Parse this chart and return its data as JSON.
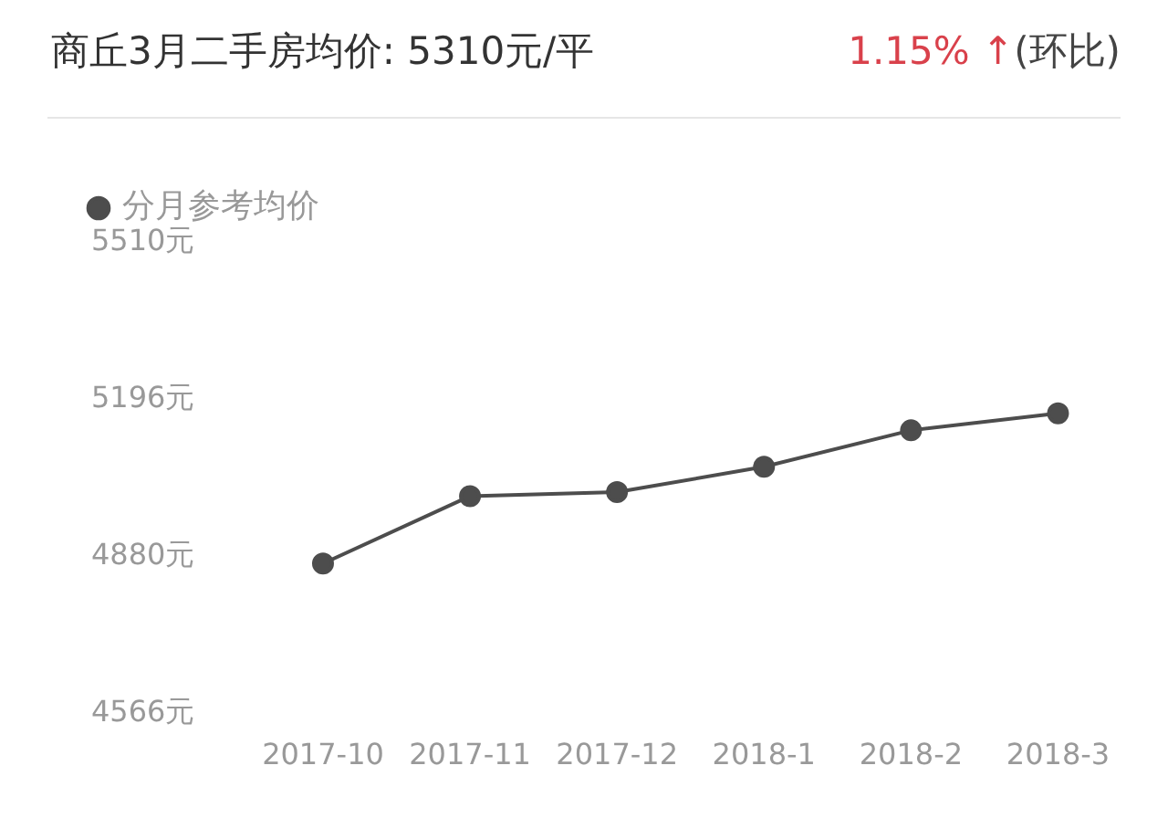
{
  "chart_data": {
    "type": "line",
    "title": "商丘3月二手房均价: 5310元/平",
    "annotations": [
      "1.15% ↑",
      "(环比)"
    ],
    "categories": [
      "2017-10",
      "2017-11",
      "2017-12",
      "2018-1",
      "2018-2",
      "2018-3"
    ],
    "series": [
      {
        "name": "分月参考均价",
        "color": "#4d4d4d",
        "values": [
          4867,
          5002,
          5010,
          5061,
          5134,
          5168
        ]
      }
    ],
    "ylim": [
      4566,
      5510
    ],
    "yticks": [
      {
        "value": 4566,
        "label": "4566元"
      },
      {
        "value": 4880,
        "label": "4880元"
      },
      {
        "value": 5196,
        "label": "5196元"
      },
      {
        "value": 5510,
        "label": "5510元"
      }
    ],
    "grid": false,
    "legend": "top left",
    "marker": "circle",
    "line_style": "solid"
  }
}
